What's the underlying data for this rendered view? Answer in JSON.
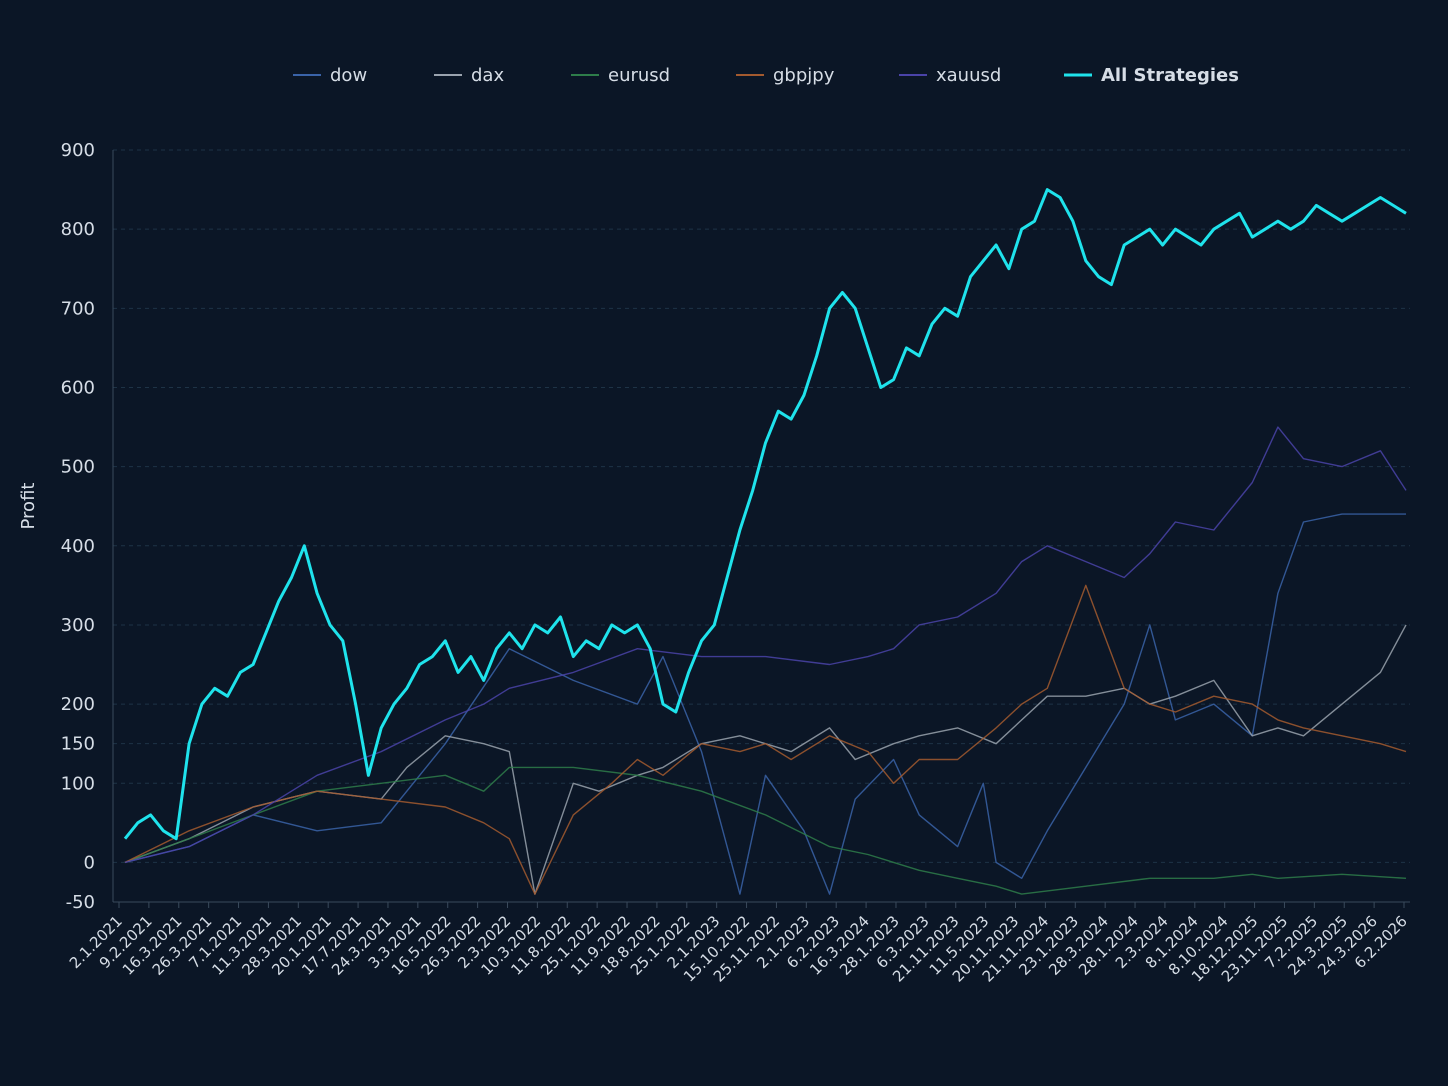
{
  "chart_data": {
    "type": "line",
    "title": "",
    "xlabel": "",
    "ylabel": "Profit",
    "ylim": [
      -50,
      900
    ],
    "grid": true,
    "legend_placement": "top-center",
    "y_ticks": [
      -50,
      0,
      100,
      150,
      200,
      300,
      400,
      500,
      600,
      700,
      800,
      900
    ],
    "x_tick_labels": [
      "2.1.2021",
      "9.2.2021",
      "16.3.2021",
      "26.3.2021",
      "7.1.2021",
      "11.3.2021",
      "28.3.2021",
      "20.1.2021",
      "17.7.2021",
      "24.3.2021",
      "3.3.2021",
      "16.5.2022",
      "26.3.2022",
      "2.3.2022",
      "10.3.2022",
      "11.8.2022",
      "25.1.2022",
      "11.9.2022",
      "18.8.2022",
      "25.1.2022",
      "2.1.2023",
      "15.10.2022",
      "25.11.2022",
      "2.1.2023",
      "6.2.2023",
      "16.3.2024",
      "28.1.2023",
      "6.3.2023",
      "21.11.2023",
      "11.5.2023",
      "20.11.2023",
      "21.11.2024",
      "23.1.2023",
      "28.3.2024",
      "28.1.2024",
      "2.3.2024",
      "8.1.2024",
      "8.10.2024",
      "18.12.2025",
      "23.11.2025",
      "7.2.2025",
      "24.3.2025",
      "24.3.2026",
      "6.2.2026"
    ],
    "series": [
      {
        "name": "dow",
        "color": "#3a63a8",
        "x": [
          0,
          5,
          10,
          15,
          20,
          25,
          30,
          35,
          40,
          42,
          45,
          48,
          50,
          53,
          55,
          57,
          60,
          62,
          65,
          67,
          68,
          70,
          72,
          75,
          78,
          80,
          82,
          85,
          88,
          90,
          92,
          95,
          98,
          100
        ],
        "values": [
          0,
          20,
          60,
          40,
          50,
          150,
          270,
          230,
          200,
          260,
          140,
          -40,
          110,
          40,
          -40,
          80,
          130,
          60,
          20,
          100,
          0,
          -20,
          40,
          120,
          200,
          300,
          180,
          200,
          160,
          340,
          430,
          440,
          440,
          440
        ]
      },
      {
        "name": "dax",
        "color": "#9aa3ae",
        "x": [
          0,
          5,
          10,
          15,
          20,
          22,
          25,
          28,
          30,
          32,
          35,
          37,
          40,
          42,
          45,
          48,
          50,
          52,
          55,
          57,
          60,
          62,
          65,
          68,
          70,
          72,
          75,
          78,
          80,
          82,
          85,
          88,
          90,
          92,
          95,
          98,
          100
        ],
        "values": [
          0,
          30,
          70,
          90,
          80,
          120,
          160,
          150,
          140,
          -40,
          100,
          90,
          110,
          120,
          150,
          160,
          150,
          140,
          170,
          130,
          150,
          160,
          170,
          150,
          180,
          210,
          210,
          220,
          200,
          210,
          230,
          160,
          170,
          160,
          200,
          240,
          300
        ]
      },
      {
        "name": "eurusd",
        "color": "#2e7d4a",
        "x": [
          0,
          5,
          10,
          15,
          20,
          25,
          28,
          30,
          35,
          40,
          45,
          50,
          55,
          58,
          60,
          62,
          65,
          68,
          70,
          75,
          80,
          85,
          88,
          90,
          95,
          100
        ],
        "values": [
          0,
          30,
          60,
          90,
          100,
          110,
          90,
          120,
          120,
          110,
          90,
          60,
          20,
          10,
          0,
          -10,
          -20,
          -30,
          -40,
          -30,
          -20,
          -20,
          -15,
          -20,
          -15,
          -20
        ]
      },
      {
        "name": "gbpjpy",
        "color": "#a35a2f",
        "x": [
          0,
          5,
          10,
          15,
          20,
          25,
          28,
          30,
          32,
          35,
          38,
          40,
          42,
          45,
          48,
          50,
          52,
          55,
          58,
          60,
          62,
          65,
          68,
          70,
          72,
          75,
          78,
          80,
          82,
          85,
          88,
          90,
          92,
          95,
          98,
          100
        ],
        "values": [
          0,
          40,
          70,
          90,
          80,
          70,
          50,
          30,
          -40,
          60,
          100,
          130,
          110,
          150,
          140,
          150,
          130,
          160,
          140,
          100,
          130,
          130,
          170,
          200,
          220,
          350,
          220,
          200,
          190,
          210,
          200,
          180,
          170,
          160,
          150,
          140
        ]
      },
      {
        "name": "xauusd",
        "color": "#4a43a8",
        "x": [
          0,
          5,
          10,
          15,
          20,
          25,
          28,
          30,
          35,
          40,
          45,
          50,
          55,
          58,
          60,
          62,
          65,
          68,
          70,
          72,
          75,
          78,
          80,
          82,
          85,
          88,
          90,
          92,
          95,
          98,
          100
        ],
        "values": [
          0,
          20,
          60,
          110,
          140,
          180,
          200,
          220,
          240,
          270,
          260,
          260,
          250,
          260,
          270,
          300,
          310,
          340,
          380,
          400,
          380,
          360,
          390,
          430,
          420,
          480,
          550,
          510,
          500,
          520,
          470
        ]
      },
      {
        "name": "All Strategies",
        "color": "#1fe3ec",
        "x": [
          0,
          1,
          2,
          3,
          4,
          5,
          6,
          7,
          8,
          9,
          10,
          11,
          12,
          13,
          14,
          15,
          16,
          17,
          18,
          19,
          20,
          21,
          22,
          23,
          24,
          25,
          26,
          27,
          28,
          29,
          30,
          31,
          32,
          33,
          34,
          35,
          36,
          37,
          38,
          39,
          40,
          41,
          42,
          43,
          44,
          45,
          46,
          47,
          48,
          49,
          50,
          51,
          52,
          53,
          54,
          55,
          56,
          57,
          58,
          59,
          60,
          61,
          62,
          63,
          64,
          65,
          66,
          67,
          68,
          69,
          70,
          71,
          72,
          73,
          74,
          75,
          76,
          77,
          78,
          79,
          80,
          81,
          82,
          83,
          84,
          85,
          86,
          87,
          88,
          89,
          90,
          91,
          92,
          93,
          94,
          95,
          96,
          97,
          98,
          99,
          100
        ],
        "values": [
          30,
          50,
          60,
          40,
          30,
          150,
          200,
          220,
          210,
          240,
          250,
          290,
          330,
          360,
          400,
          340,
          300,
          280,
          200,
          110,
          170,
          200,
          220,
          250,
          260,
          280,
          240,
          260,
          230,
          270,
          290,
          270,
          300,
          290,
          310,
          260,
          280,
          270,
          300,
          290,
          300,
          270,
          200,
          190,
          240,
          280,
          300,
          360,
          420,
          470,
          530,
          570,
          560,
          590,
          640,
          700,
          720,
          700,
          650,
          600,
          610,
          650,
          640,
          680,
          700,
          690,
          740,
          760,
          780,
          750,
          800,
          810,
          850,
          840,
          810,
          760,
          740,
          730,
          780,
          790,
          800,
          780,
          800,
          790,
          780,
          800,
          810,
          820,
          790,
          800,
          810,
          800,
          810,
          830,
          820,
          810,
          820,
          830,
          840,
          830,
          820
        ]
      }
    ]
  }
}
